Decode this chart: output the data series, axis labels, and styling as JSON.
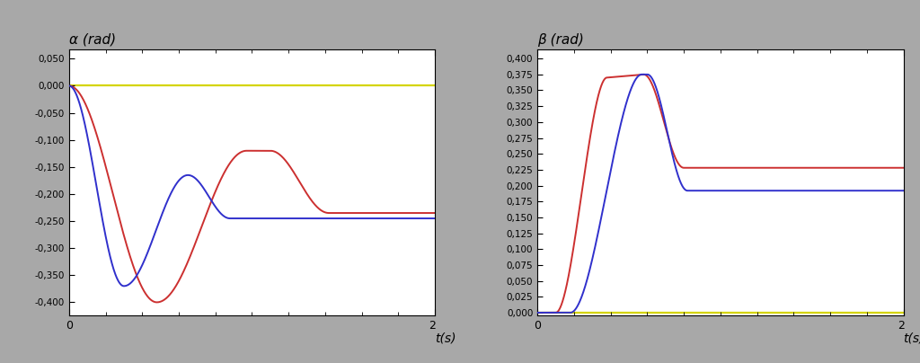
{
  "fig_width": 10.24,
  "fig_height": 4.04,
  "bg_color": "#a8a8a8",
  "plot_bg_color": "#ffffff",
  "left_title": "α (rad)",
  "right_title": "β (rad)",
  "xlabel": "t(s)",
  "xlim": [
    0,
    2
  ],
  "left_ylim": [
    -0.425,
    0.068
  ],
  "right_ylim": [
    -0.005,
    0.415
  ],
  "left_yticks": [
    0.05,
    0.0,
    -0.05,
    -0.1,
    -0.15,
    -0.2,
    -0.25,
    -0.3,
    -0.35,
    -0.4
  ],
  "right_yticks": [
    0.4,
    0.375,
    0.35,
    0.325,
    0.3,
    0.275,
    0.25,
    0.225,
    0.2,
    0.175,
    0.15,
    0.125,
    0.1,
    0.075,
    0.05,
    0.025,
    0.0
  ],
  "left_ytick_labels": [
    "0,050",
    "0,000",
    "-0,050",
    "-0,100",
    "-0,150",
    "-0,200",
    "-0,250",
    "-0,300",
    "-0,350",
    "-0,400"
  ],
  "right_ytick_labels": [
    "0,400",
    "0,375",
    "0,350",
    "0,325",
    "0,300",
    "0,275",
    "0,250",
    "0,225",
    "0,200",
    "0,175",
    "0,150",
    "0,125",
    "0,100",
    "0,075",
    "0,050",
    "0,025",
    "0,000"
  ],
  "line_colors": {
    "blue": "#3030cc",
    "red": "#cc3030",
    "yellow": "#d4d400"
  },
  "font_size_tick": 7.5,
  "font_size_title": 11,
  "font_size_xlabel": 10
}
